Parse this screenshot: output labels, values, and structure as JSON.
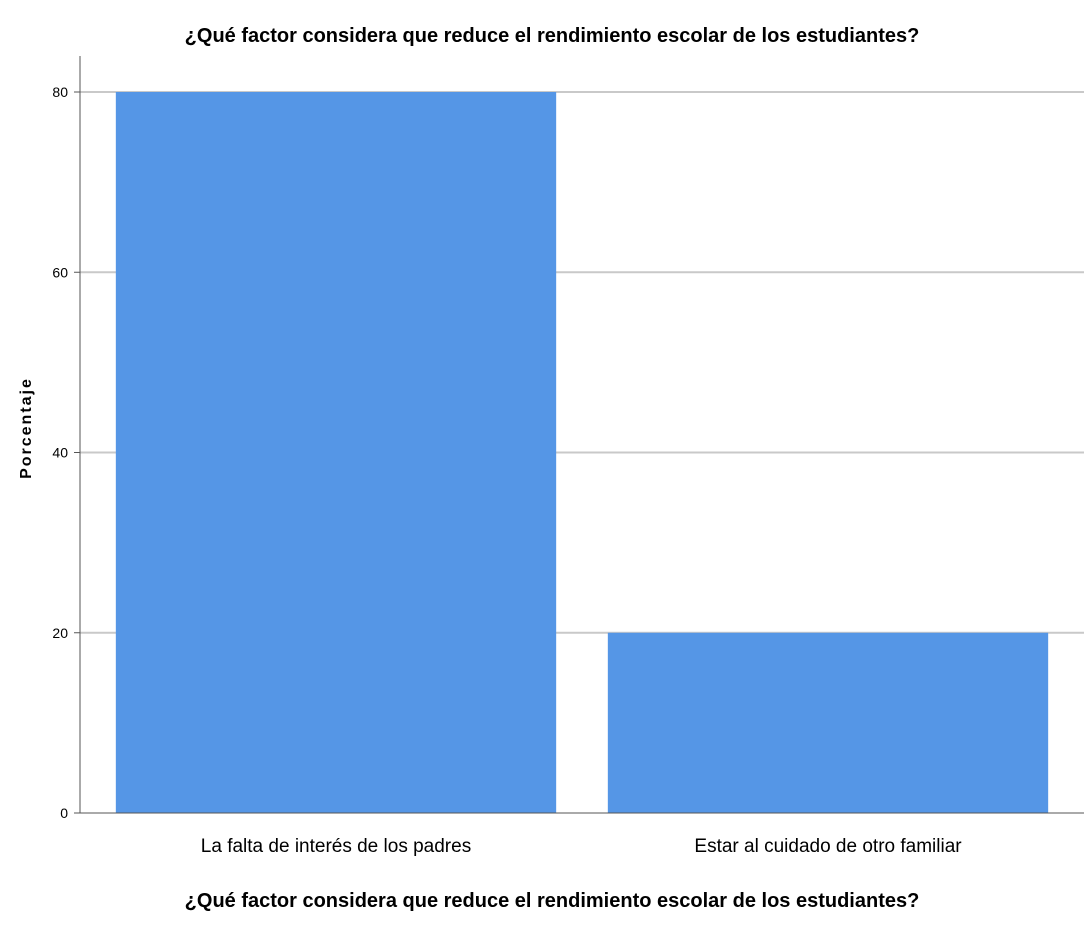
{
  "chart_data": {
    "type": "bar",
    "title": "¿Qué factor considera que reduce el rendimiento escolar de los estudiantes?",
    "xlabel": "¿Qué factor considera que reduce el rendimiento escolar de los estudiantes?",
    "ylabel": "Porcentaje",
    "categories": [
      "La falta de interés de los padres",
      "Estar al cuidado de otro familiar"
    ],
    "values": [
      80,
      20
    ],
    "ylim": [
      0,
      85
    ],
    "yticks": [
      0,
      20,
      40,
      60,
      80
    ],
    "grid": true,
    "bar_color": "#5596e6",
    "grid_color": "#c9c9c9"
  }
}
